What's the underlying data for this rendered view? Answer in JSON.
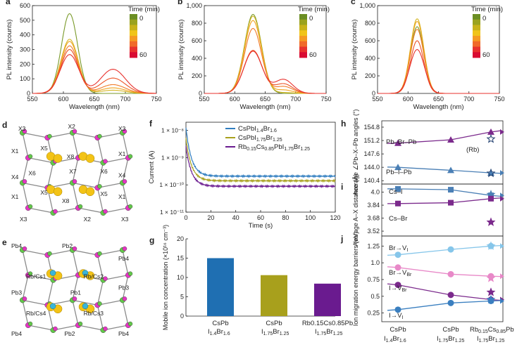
{
  "panel_labels": [
    "a",
    "b",
    "c",
    "d",
    "e",
    "f",
    "g",
    "h",
    "i",
    "j"
  ],
  "colorbar": {
    "title": "Time (min)",
    "top_label": "0",
    "bottom_label": "60",
    "colors": [
      "#6b8e23",
      "#9aa21f",
      "#c8b21a",
      "#f0c419",
      "#f59a22",
      "#f06a2a",
      "#e8322e",
      "#d90b32"
    ]
  },
  "pl_series_colors": [
    "#7a9a2a",
    "#d4b622",
    "#f0a21c",
    "#f07a28",
    "#ec5226",
    "#e8322e"
  ],
  "structure_d": {
    "labels": [
      "X3",
      "X2",
      "X3",
      "X1",
      "X5",
      "X8",
      "X1",
      "X7",
      "X4",
      "X6",
      "X6",
      "X4",
      "X1",
      "X5",
      "X5",
      "X1",
      "X3",
      "X8",
      "X2",
      "X3"
    ]
  },
  "structure_e": {
    "labels": [
      "Pb4",
      "Pb2",
      "Pb4",
      "Rb/Cs1",
      "Rb/Cs2",
      "Pb3",
      "Pb1",
      "Pb3",
      "Rb/Cs4",
      "Rb/Cs3",
      "Pb4",
      "Pb2",
      "Pb4"
    ]
  },
  "chart_data": [
    {
      "id": "a",
      "type": "line",
      "xlabel": "Wavelength (nm)",
      "ylabel": "PL intensity (counts)",
      "xlim": [
        550,
        750
      ],
      "ylim": [
        0,
        600
      ],
      "xticks": [
        550,
        600,
        650,
        700,
        750
      ],
      "yticks": [
        0,
        100,
        200,
        300,
        400,
        500,
        600
      ],
      "series": [
        {
          "peak1": [
            610,
            545,
            13
          ],
          "peak2": [
            680,
            0,
            20
          ]
        },
        {
          "peak1": [
            610,
            370,
            14
          ],
          "peak2": [
            680,
            22,
            20
          ]
        },
        {
          "peak1": [
            610,
            355,
            14
          ],
          "peak2": [
            680,
            38,
            20
          ]
        },
        {
          "peak1": [
            610,
            325,
            14
          ],
          "peak2": [
            680,
            60,
            20
          ]
        },
        {
          "peak1": [
            610,
            300,
            14
          ],
          "peak2": [
            680,
            105,
            20
          ]
        },
        {
          "peak1": [
            610,
            265,
            15
          ],
          "peak2": [
            680,
            165,
            20
          ]
        }
      ]
    },
    {
      "id": "b",
      "type": "line",
      "xlabel": "Wavelength (nm)",
      "ylabel": "PL intensity (counts)",
      "xlim": [
        550,
        750
      ],
      "ylim": [
        0,
        1000
      ],
      "xticks": [
        550,
        600,
        650,
        700,
        750
      ],
      "yticks": [
        0,
        200,
        400,
        600,
        800,
        1000
      ],
      "series": [
        {
          "peak1": [
            630,
            900,
            14
          ],
          "peak2": [
            680,
            0,
            15
          ]
        },
        {
          "peak1": [
            630,
            880,
            14
          ],
          "peak2": [
            680,
            10,
            15
          ]
        },
        {
          "peak1": [
            630,
            830,
            14
          ],
          "peak2": [
            680,
            40,
            15
          ]
        },
        {
          "peak1": [
            630,
            740,
            14
          ],
          "peak2": [
            680,
            80,
            15
          ]
        },
        {
          "peak1": [
            630,
            490,
            15
          ],
          "peak2": [
            680,
            110,
            15
          ]
        },
        {
          "peak1": [
            630,
            480,
            15
          ],
          "peak2": [
            680,
            160,
            15
          ]
        }
      ]
    },
    {
      "id": "c",
      "type": "line",
      "xlabel": "Wavelength (nm)",
      "ylabel": "PL intensity (counts)",
      "xlim": [
        550,
        750
      ],
      "ylim": [
        0,
        1000
      ],
      "xticks": [
        550,
        600,
        650,
        700,
        750
      ],
      "yticks": [
        0,
        200,
        400,
        600,
        800,
        1000
      ],
      "series": [
        {
          "peak1": [
            615,
            760,
            11
          ]
        },
        {
          "peak1": [
            615,
            850,
            11
          ]
        },
        {
          "peak1": [
            615,
            820,
            11
          ]
        },
        {
          "peak1": [
            615,
            730,
            11
          ]
        },
        {
          "peak1": [
            615,
            600,
            11
          ]
        },
        {
          "peak1": [
            615,
            500,
            12
          ]
        }
      ]
    },
    {
      "id": "f",
      "type": "line",
      "xlabel": "Time (s)",
      "ylabel": "Current (A)",
      "xlim": [
        0,
        120
      ],
      "yscale": "log",
      "ylim_exp": [
        -11,
        -7.7
      ],
      "xticks": [
        0,
        20,
        40,
        60,
        80,
        100,
        120
      ],
      "yticks": [
        "1 × 10⁻¹¹",
        "1 × 10⁻¹⁰",
        "1 × 10⁻⁹",
        "1 × 10⁻⁸"
      ],
      "ytick_exp": [
        -11,
        -10,
        -9,
        -8
      ],
      "series": [
        {
          "name": "CsPbI1.4Br1.6",
          "legend_main": "CsPbI",
          "legend_sub1": "1.4",
          "legend_mid": "Br",
          "legend_sub2": "1.6",
          "color": "#2f7dbf",
          "start_exp": -7.9,
          "end_exp": -9.68
        },
        {
          "name": "CsPbI1.75Br1.25",
          "legend_main": "CsPbI",
          "legend_sub1": "1.75",
          "legend_mid": "Br",
          "legend_sub2": "1.25",
          "color": "#a8a01c",
          "start_exp": -8.3,
          "end_exp": -9.85
        },
        {
          "name": "Rb0.15Cs0.85PbI1.75Br1.25",
          "legend_main": "Rb",
          "legend_sub1": "0.15",
          "legend_mid": "Cs",
          "legend_sub2": "0.85",
          "legend_tail": "PbI",
          "legend_sub3": "1.75",
          "legend_tail2": "Br",
          "legend_sub4": "1.25",
          "color": "#6a1b8f",
          "start_exp": -8.6,
          "end_exp": -10.05
        }
      ]
    },
    {
      "id": "g",
      "type": "bar",
      "ylabel": "Mobile ion concentration (×10¹⁶ cm⁻³)",
      "ylim": [
        0,
        20
      ],
      "yticks": [
        0,
        5,
        10,
        15,
        20
      ],
      "categories": [
        {
          "line1": "CsPb",
          "line2": "I",
          "s1": "1.4",
          "line2b": "Br",
          "s2": "1.6"
        },
        {
          "line1": "CsPb",
          "line2": "I",
          "s1": "1.75",
          "line2b": "Br",
          "s2": "1.25"
        },
        {
          "line1": "Rb0.15Cs0.85Pb",
          "line2": "I",
          "s1": "1.75",
          "line2b": "Br",
          "s2": "1.25"
        }
      ],
      "values": [
        15.0,
        10.6,
        8.4
      ],
      "colors": [
        "#1f6fb2",
        "#a8a01c",
        "#6a1b8f"
      ]
    },
    {
      "id": "h",
      "type": "scatter",
      "ylabel": "Average ∠Pb–X–Pb angles (°)",
      "yticks": [
        140.4,
        144.0,
        147.6,
        151.2,
        154.8
      ],
      "ylim": [
        139.5,
        156.5
      ],
      "series": [
        {
          "name": "Pb–Br–Pb",
          "color": "#7b2a8c",
          "values": [
            150.5,
            151.4,
            153.5
          ],
          "star": 151.6
        },
        {
          "name": "Pb–I–Pb",
          "color": "#4a7fb5",
          "values": [
            144.0,
            143.2,
            142.5
          ],
          "star": 142.4
        }
      ],
      "annotation": "(Rb)"
    },
    {
      "id": "i",
      "type": "scatter",
      "ylabel": "Average A–X distance (Å)",
      "yticks": [
        3.52,
        3.68,
        3.84,
        4.0
      ],
      "ylim": [
        3.46,
        4.1
      ],
      "series": [
        {
          "name": "Cs–I",
          "color": "#4a7fb5",
          "values": [
            4.04,
            4.03,
            3.96
          ],
          "star": 3.97
        },
        {
          "name": "Cs–Br",
          "color": "#7b2a8c",
          "values": [
            3.86,
            3.87,
            3.92
          ],
          "star": 3.63
        }
      ]
    },
    {
      "id": "j",
      "type": "scatter",
      "ylabel": "Ion migration energy barriers (eV)",
      "yticks": [
        0.25,
        0.5,
        0.75,
        1.0,
        1.25
      ],
      "ylim": [
        0.12,
        1.4
      ],
      "series": [
        {
          "name": "Br→V",
          "sub": "I",
          "color": "#86c6ea",
          "values": [
            1.12,
            1.2,
            1.25
          ],
          "star": 1.25
        },
        {
          "name": "Br→V",
          "sub": "Br",
          "color": "#e889c8",
          "values": [
            0.93,
            0.83,
            0.8
          ],
          "star": 0.77
        },
        {
          "name": "I→V",
          "sub": "Br",
          "color": "#7b2a8c",
          "values": [
            0.67,
            0.52,
            0.45
          ],
          "star": 0.56
        },
        {
          "name": "I→V",
          "sub": "I",
          "color": "#3a7fc0",
          "values": [
            0.3,
            0.4,
            0.43
          ],
          "star": 0.45
        }
      ],
      "categories": [
        {
          "line1": "CsPb",
          "line2": "I",
          "s1": "1.4",
          "line2b": "Br",
          "s2": "1.6"
        },
        {
          "line1": "CsPb",
          "line2": "I",
          "s1": "1.75",
          "line2b": "Br",
          "s2": "1.25"
        },
        {
          "line1": "Rb",
          "s0": "0.15",
          "mid": "Cs",
          "s0b": "0.85",
          "tail": "Pb",
          "line2": "I",
          "s1": "1.75",
          "line2b": "Br",
          "s2": "1.25"
        }
      ]
    }
  ]
}
